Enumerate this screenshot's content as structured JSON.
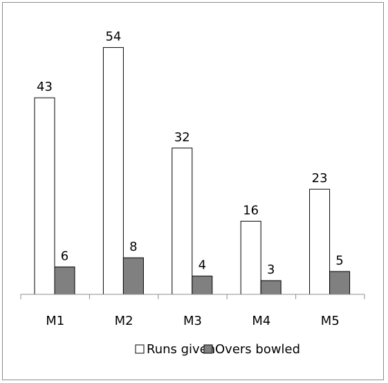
{
  "chart_data": {
    "type": "bar",
    "title": "",
    "xlabel": "",
    "ylabel": "",
    "categories": [
      "M1",
      "M2",
      "M3",
      "M4",
      "M5"
    ],
    "series": [
      {
        "name": "Runs given",
        "values": [
          43,
          54,
          32,
          16,
          23
        ],
        "color": "#ffffff",
        "stroke": "#000000"
      },
      {
        "name": "Overs bowled",
        "values": [
          6,
          8,
          4,
          3,
          5
        ],
        "color": "#808080",
        "stroke": "#000000"
      }
    ],
    "ylim": [
      0,
      54
    ],
    "grid": false,
    "data_labels": true,
    "legend_position": "bottom"
  }
}
